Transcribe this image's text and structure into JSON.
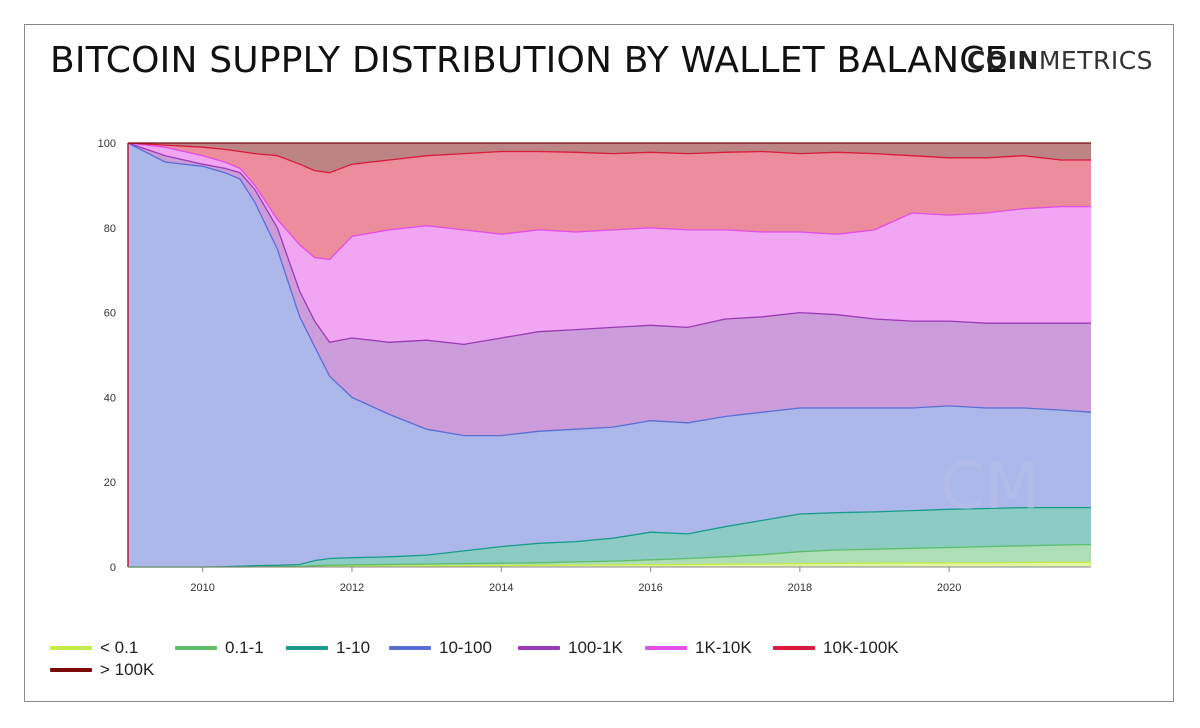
{
  "header": {
    "title": "BITCOIN SUPPLY DISTRIBUTION BY WALLET BALANCE",
    "logo_bold": "COIN",
    "logo_light": "METRICS"
  },
  "chart_data": {
    "type": "area",
    "stacked": true,
    "title": "BITCOIN SUPPLY DISTRIBUTION BY WALLET BALANCE",
    "xlabel": "",
    "ylabel": "",
    "xlim": [
      2009.0,
      2021.9
    ],
    "ylim": [
      0,
      100
    ],
    "x_ticks": [
      2010,
      2012,
      2014,
      2016,
      2018,
      2020
    ],
    "y_ticks": [
      0,
      20,
      40,
      60,
      80,
      100
    ],
    "grid": false,
    "legend_position": "bottom",
    "watermark": "CM",
    "x": [
      2009.0,
      2009.5,
      2010.0,
      2010.3,
      2010.5,
      2010.7,
      2011.0,
      2011.3,
      2011.5,
      2011.7,
      2012.0,
      2012.5,
      2013.0,
      2013.5,
      2014.0,
      2014.5,
      2015.0,
      2015.5,
      2016.0,
      2016.5,
      2017.0,
      2017.5,
      2018.0,
      2018.5,
      2019.0,
      2019.5,
      2020.0,
      2020.5,
      2021.0,
      2021.5,
      2021.9
    ],
    "series": [
      {
        "name": "< 0.1",
        "color": "#c6ec4a",
        "cumulative": [
          0,
          0,
          0,
          0,
          0,
          0,
          0,
          0,
          0.05,
          0.1,
          0.15,
          0.2,
          0.25,
          0.3,
          0.35,
          0.4,
          0.45,
          0.5,
          0.55,
          0.6,
          0.65,
          0.7,
          0.8,
          0.85,
          0.9,
          0.95,
          1.0,
          1.0,
          1.05,
          1.1,
          1.1
        ]
      },
      {
        "name": "0.1-1",
        "color": "#5cbd6b",
        "cumulative": [
          0,
          0,
          0,
          0,
          0,
          0.05,
          0.1,
          0.15,
          0.3,
          0.4,
          0.5,
          0.6,
          0.7,
          0.8,
          0.9,
          1.0,
          1.2,
          1.4,
          1.7,
          2.0,
          2.4,
          2.9,
          3.6,
          4.0,
          4.2,
          4.4,
          4.6,
          4.8,
          5.0,
          5.2,
          5.3
        ]
      },
      {
        "name": "1-10",
        "color": "#1a9a8a",
        "cumulative": [
          0,
          0,
          0,
          0.1,
          0.2,
          0.3,
          0.4,
          0.6,
          1.5,
          2.0,
          2.2,
          2.4,
          2.8,
          3.8,
          4.8,
          5.6,
          6.0,
          6.8,
          8.2,
          7.8,
          9.5,
          11.0,
          12.5,
          12.8,
          13.0,
          13.3,
          13.6,
          13.8,
          14.0,
          14.0,
          14.0
        ]
      },
      {
        "name": "10-100",
        "color": "#5a6fd6",
        "cumulative": [
          100,
          95.5,
          94.5,
          93.0,
          91.5,
          86.0,
          75.0,
          59.0,
          52.0,
          45.0,
          40.0,
          36.0,
          32.5,
          31.0,
          31.0,
          32.0,
          32.5,
          33.0,
          34.5,
          34.0,
          35.5,
          36.5,
          37.5,
          37.5,
          37.5,
          37.5,
          38.0,
          37.5,
          37.5,
          37.0,
          36.5
        ]
      },
      {
        "name": "100-1K",
        "color": "#9a3bb5",
        "cumulative": [
          100,
          97.0,
          95.0,
          94.0,
          93.0,
          89.0,
          80.0,
          65.0,
          58.0,
          53.0,
          54.0,
          53.0,
          53.5,
          52.5,
          54.0,
          55.5,
          56.0,
          56.5,
          57.0,
          56.5,
          58.5,
          59.0,
          60.0,
          59.5,
          58.5,
          58.0,
          58.0,
          57.5,
          57.5,
          57.5,
          57.5
        ]
      },
      {
        "name": "1K-10K",
        "color": "#e24ee6",
        "cumulative": [
          100,
          99.0,
          97.0,
          95.5,
          94.0,
          90.0,
          82.0,
          76.0,
          73.0,
          72.5,
          78.0,
          79.5,
          80.5,
          79.5,
          78.5,
          79.5,
          79.0,
          79.5,
          80.0,
          79.5,
          79.5,
          79.0,
          79.0,
          78.5,
          79.5,
          83.5,
          83.0,
          83.5,
          84.5,
          85.0,
          85.0
        ]
      },
      {
        "name": "10K-100K",
        "color": "#d81b3c",
        "cumulative": [
          100,
          99.5,
          99.0,
          98.5,
          98.0,
          97.5,
          97.0,
          95.0,
          93.5,
          93.0,
          95.0,
          96.0,
          97.0,
          97.5,
          98.0,
          98.0,
          97.8,
          97.5,
          97.8,
          97.5,
          97.8,
          98.0,
          97.5,
          97.8,
          97.5,
          97.0,
          96.5,
          96.5,
          97.0,
          96.0,
          96.0
        ]
      },
      {
        "name": "> 100K",
        "color": "#7a0a0a",
        "cumulative": [
          100,
          100,
          100,
          100,
          100,
          100,
          100,
          100,
          100,
          100,
          100,
          100,
          100,
          100,
          100,
          100,
          100,
          100,
          100,
          100,
          100,
          100,
          100,
          100,
          100,
          100,
          100,
          100,
          100,
          100,
          100
        ]
      }
    ]
  }
}
